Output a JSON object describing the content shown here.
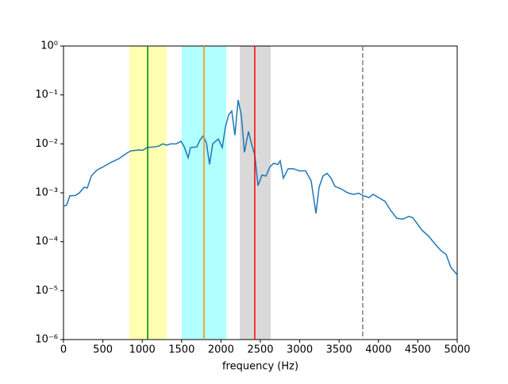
{
  "chart_data": {
    "type": "line",
    "xlabel": "frequency (Hz)",
    "xlim": [
      0,
      5000
    ],
    "xticks": [
      0,
      500,
      1000,
      1500,
      2000,
      2500,
      3000,
      3500,
      4000,
      4500,
      5000
    ],
    "ylim": [
      1e-06,
      1
    ],
    "yscale": "log",
    "yticks": [
      {
        "value": 1e-06,
        "label": "10⁻⁶"
      },
      {
        "value": 1e-05,
        "label": "10⁻⁵"
      },
      {
        "value": 0.0001,
        "label": "10⁻⁴"
      },
      {
        "value": 0.001,
        "label": "10⁻³"
      },
      {
        "value": 0.01,
        "label": "10⁻²"
      },
      {
        "value": 0.1,
        "label": "10⁻¹"
      },
      {
        "value": 1,
        "label": "10⁰"
      }
    ],
    "spans": [
      {
        "x": [
          837,
          1310
        ],
        "color": "#ffff00",
        "alpha": 0.3
      },
      {
        "x": [
          1502,
          2067
        ],
        "color": "#00ffff",
        "alpha": 0.3
      },
      {
        "x": [
          2238,
          2631
        ],
        "color": "#808080",
        "alpha": 0.3
      }
    ],
    "vlines": [
      {
        "x": 1069,
        "color": "#008000",
        "dashed": false
      },
      {
        "x": 1784,
        "color": "#ff8c00",
        "dashed": false
      },
      {
        "x": 2429,
        "color": "#ff0000",
        "dashed": false
      },
      {
        "x": 3800,
        "color": "#808080",
        "dashed": true
      }
    ],
    "series": [
      {
        "color": "#1f77b4",
        "x": [
          0,
          40,
          81,
          151,
          202,
          262,
          302,
          353,
          423,
          504,
          605,
          706,
          806,
          857,
          958,
          1008,
          1058,
          1159,
          1210,
          1260,
          1310,
          1361,
          1431,
          1492,
          1532,
          1583,
          1613,
          1694,
          1734,
          1774,
          1815,
          1855,
          1895,
          1966,
          2016,
          2056,
          2097,
          2137,
          2177,
          2218,
          2258,
          2298,
          2349,
          2389,
          2429,
          2470,
          2520,
          2571,
          2621,
          2671,
          2722,
          2752,
          2792,
          2853,
          2923,
          2994,
          3075,
          3145,
          3206,
          3246,
          3296,
          3347,
          3397,
          3448,
          3528,
          3609,
          3679,
          3750,
          3810,
          3881,
          3931,
          4012,
          4083,
          4153,
          4234,
          4315,
          4385,
          4435,
          4486,
          4556,
          4637,
          4718,
          4798,
          4859,
          4919,
          5000
        ],
        "values": [
          0.00053,
          0.00056,
          0.00087,
          0.00088,
          0.001,
          0.0013,
          0.00125,
          0.0022,
          0.0029,
          0.0034,
          0.0042,
          0.005,
          0.0065,
          0.0072,
          0.0075,
          0.0074,
          0.0084,
          0.0087,
          0.009,
          0.01,
          0.0094,
          0.01,
          0.01,
          0.0113,
          0.0088,
          0.0052,
          0.0084,
          0.0087,
          0.012,
          0.0145,
          0.0105,
          0.0038,
          0.01,
          0.0126,
          0.0084,
          0.022,
          0.039,
          0.047,
          0.015,
          0.079,
          0.039,
          0.0067,
          0.018,
          0.0098,
          0.006,
          0.0014,
          0.0023,
          0.0022,
          0.0034,
          0.004,
          0.0038,
          0.0045,
          0.002,
          0.0031,
          0.0031,
          0.0028,
          0.0028,
          0.00175,
          0.00038,
          0.0013,
          0.0022,
          0.0025,
          0.002,
          0.00135,
          0.0012,
          0.001,
          0.00093,
          0.00098,
          0.00087,
          0.0008,
          0.00093,
          0.00078,
          0.00067,
          0.00044,
          0.0003,
          0.00029,
          0.00033,
          0.00031,
          0.00024,
          0.00017,
          0.00013,
          9e-05,
          6.5e-05,
          5.5e-05,
          3e-05,
          2.1e-05
        ]
      }
    ]
  }
}
